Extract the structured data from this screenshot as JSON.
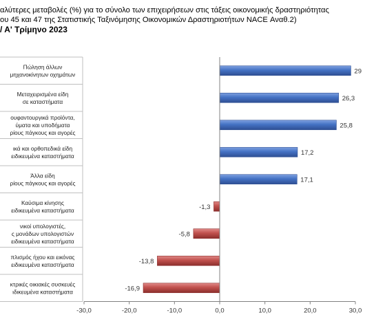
{
  "title": {
    "line1": "αλύτερες μεταβολές (%) για το σύνολο των επιχειρήσεων στις τάξεις οικονομικής δραστηριότητας",
    "line2": "ου 45 και 47 της Στατιστικής Ταξινόμησης Οικονομικών Δραστηριοτήτων NACE Αναθ.2)",
    "line3": "/ Α' Τρίμηνο 2023"
  },
  "colors": {
    "positive": "#4472c4",
    "positive_dark": "#2f4f93",
    "negative": "#c0504d",
    "negative_dark": "#8c2f2d"
  },
  "chart_data": {
    "type": "bar",
    "orientation": "horizontal",
    "categories": [
      [
        "Πώληση άλλων",
        "μηχανοκίνητων οχημάτων"
      ],
      [
        "Μεταχειρισμένα είδη",
        "σε καταστήματα"
      ],
      [
        "ουφαντουργικά προϊόντα,",
        "ύματα και υποδήματα",
        "ρίους πάγκους και αγορές"
      ],
      [
        "ικά και ορθοπεδικά είδη",
        "ειδικευμένα καταστήματα"
      ],
      [
        "Άλλα είδη",
        "ρίους πάγκους και αγορές"
      ],
      [
        "Καύσιμα κίνησης",
        "ειδικευμένα καταστήματα"
      ],
      [
        "νικοί υπολογιστές,",
        "ς μονάδων υπολογιστών",
        "ειδικευμένα καταστήματα"
      ],
      [
        "πλισμός ήχου και εικόνας",
        "ειδικευμένα καταστήματα"
      ],
      [
        "κτρικές οικιακές συσκευές",
        "ιδικευμένα καταστήματα"
      ]
    ],
    "values": [
      29.0,
      26.3,
      25.8,
      17.2,
      17.1,
      -1.3,
      -5.8,
      -13.8,
      -16.9
    ],
    "value_labels": [
      "29",
      "26,3",
      "25,8",
      "17,2",
      "17,1",
      "-1,3",
      "-5,8",
      "-13,8",
      "-16,9"
    ],
    "xlim": [
      -30,
      30
    ],
    "xticks": [
      -30,
      -20,
      -10,
      0,
      10,
      20,
      30
    ],
    "xtick_labels": [
      "-30,0",
      "-20,0",
      "-10,0",
      "0,0",
      "10,0",
      "20,0",
      "30,0"
    ],
    "grid": false,
    "legend": "none"
  }
}
